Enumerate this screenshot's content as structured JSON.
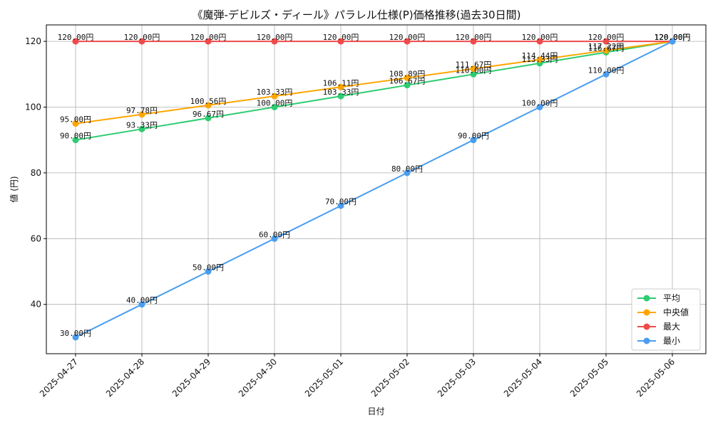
{
  "chart_data": {
    "type": "line",
    "title": "《魔弾-デビルズ・ディール》パラレル仕様(P)価格推移(過去30日間)",
    "xlabel": "日付",
    "ylabel": "値 (円)",
    "ylim": [
      25,
      125
    ],
    "yticks": [
      40,
      60,
      80,
      100,
      120
    ],
    "grid": true,
    "legend_position": "bottom-right",
    "value_suffix": "円",
    "categories": [
      "2025-04-27",
      "2025-04-28",
      "2025-04-29",
      "2025-04-30",
      "2025-05-01",
      "2025-05-02",
      "2025-05-03",
      "2025-05-04",
      "2025-05-05",
      "2025-05-06"
    ],
    "series": [
      {
        "name": "平均",
        "color": "#2ecc71",
        "values": [
          90.0,
          93.33,
          96.67,
          100.0,
          103.33,
          106.67,
          110.0,
          113.33,
          116.67,
          120.0
        ]
      },
      {
        "name": "中央値",
        "color": "#ffa500",
        "values": [
          95.0,
          97.78,
          100.56,
          103.33,
          106.11,
          108.89,
          111.67,
          114.44,
          117.22,
          120.0
        ]
      },
      {
        "name": "最大",
        "color": "#f04a4a",
        "values": [
          120.0,
          120.0,
          120.0,
          120.0,
          120.0,
          120.0,
          120.0,
          120.0,
          120.0,
          120.0
        ]
      },
      {
        "name": "最小",
        "color": "#4a9df0",
        "values": [
          30.0,
          40.0,
          50.0,
          60.0,
          70.0,
          80.0,
          90.0,
          100.0,
          110.0,
          120.0
        ]
      }
    ]
  }
}
